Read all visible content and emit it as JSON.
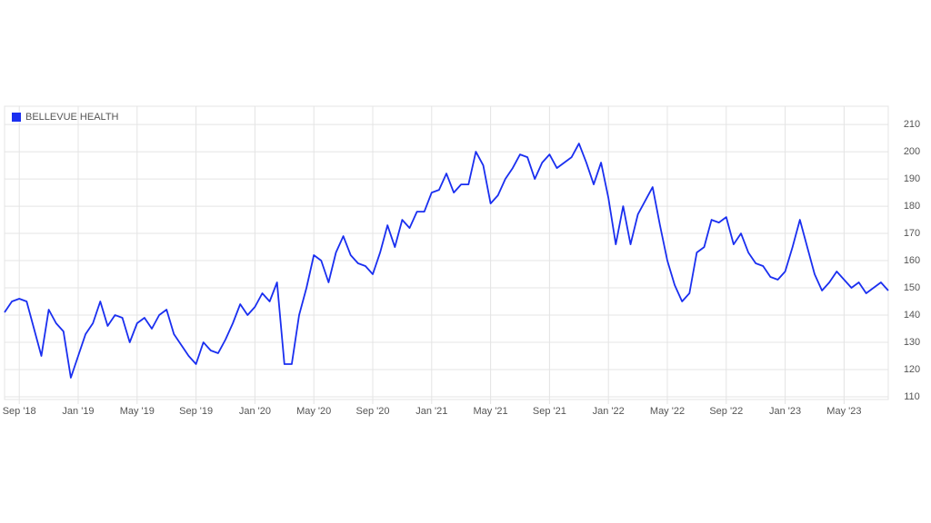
{
  "chart_data": {
    "type": "line",
    "categories": [
      null,
      null,
      "Sep '18",
      null,
      null,
      null,
      null,
      null,
      null,
      null,
      "Jan '19",
      null,
      null,
      null,
      null,
      null,
      null,
      null,
      "May '19",
      null,
      null,
      null,
      null,
      null,
      null,
      null,
      "Sep '19",
      null,
      null,
      null,
      null,
      null,
      null,
      null,
      "Jan '20",
      null,
      null,
      null,
      null,
      null,
      null,
      null,
      "May '20",
      null,
      null,
      null,
      null,
      null,
      null,
      null,
      "Sep '20",
      null,
      null,
      null,
      null,
      null,
      null,
      null,
      "Jan '21",
      null,
      null,
      null,
      null,
      null,
      null,
      null,
      "May '21",
      null,
      null,
      null,
      null,
      null,
      null,
      null,
      "Sep '21",
      null,
      null,
      null,
      null,
      null,
      null,
      null,
      "Jan '22",
      null,
      null,
      null,
      null,
      null,
      null,
      null,
      "May '22",
      null,
      null,
      null,
      null,
      null,
      null,
      null,
      "Sep '22",
      null,
      null,
      null,
      null,
      null,
      null,
      null,
      "Jan '23",
      null,
      null,
      null,
      null,
      null,
      null,
      null,
      "May '23",
      null,
      null,
      null,
      null,
      null,
      null
    ],
    "series": [
      {
        "name": "BELLEVUE HEALTH",
        "color": "#1a2ff0",
        "values": [
          141,
          145,
          146,
          145,
          135,
          125,
          142,
          137,
          134,
          117,
          125,
          133,
          137,
          145,
          136,
          140,
          139,
          130,
          137,
          139,
          135,
          140,
          142,
          133,
          129,
          125,
          122,
          130,
          127,
          126,
          131,
          137,
          144,
          140,
          143,
          148,
          145,
          152,
          122,
          122,
          140,
          150,
          162,
          160,
          152,
          163,
          169,
          162,
          159,
          158,
          155,
          163,
          173,
          165,
          175,
          172,
          178,
          178,
          185,
          186,
          192,
          185,
          188,
          188,
          200,
          195,
          181,
          184,
          190,
          194,
          199,
          198,
          190,
          196,
          199,
          194,
          196,
          198,
          203,
          196,
          188,
          196,
          183,
          166,
          180,
          166,
          177,
          182,
          187,
          173,
          160,
          151,
          145,
          148,
          163,
          165,
          175,
          174,
          176,
          166,
          170,
          163,
          159,
          158,
          154,
          153,
          156,
          165,
          175,
          165,
          155,
          149,
          152,
          156,
          153,
          150,
          152,
          148,
          150,
          152,
          149
        ]
      }
    ],
    "ylim": [
      109,
      216.7
    ],
    "yticks": [
      110,
      120,
      130,
      140,
      150,
      160,
      170,
      180,
      190,
      200,
      210
    ],
    "grid": true,
    "legend": "top-left"
  }
}
